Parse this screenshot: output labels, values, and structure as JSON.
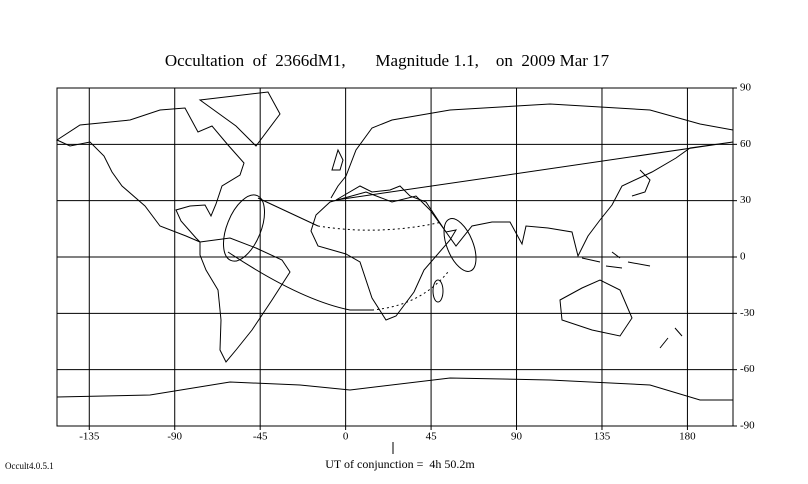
{
  "map": {
    "title": "Occultation  of  2366dM1,       Magnitude 1.1,    on  2009 Mar 17",
    "xlim": [
      -152,
      204
    ],
    "ylim": [
      -90,
      90
    ],
    "xticks": [
      -135,
      -90,
      -45,
      0,
      45,
      90,
      135,
      180
    ],
    "yticks": [
      90,
      60,
      30,
      0,
      -30,
      -60,
      -90
    ],
    "footer": "UT of conjunction =  4h 50.2m",
    "version": "Occult4.0.5.1"
  }
}
